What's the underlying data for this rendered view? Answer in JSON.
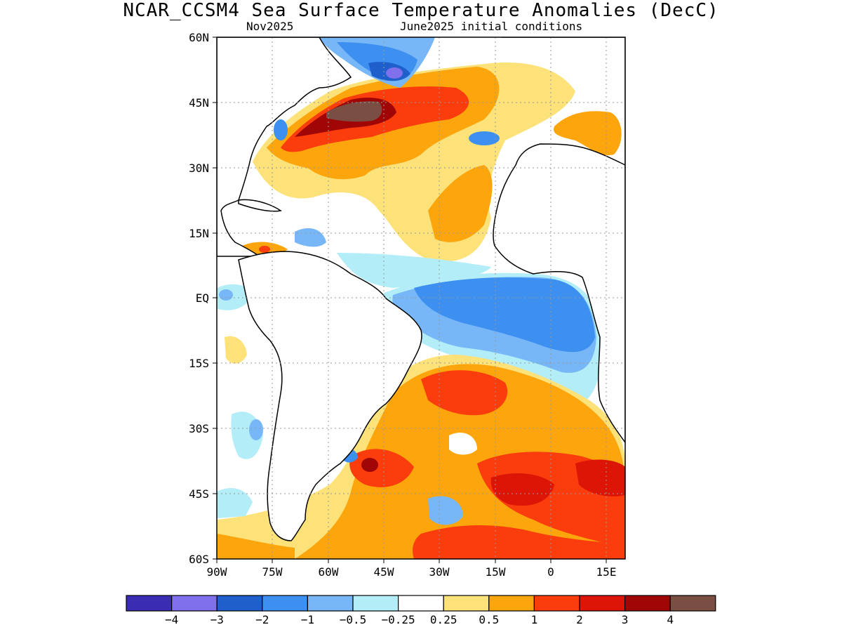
{
  "title": "NCAR_CCSM4 Sea Surface Temperature Anomalies (DecC)",
  "valid_month": "Nov2025",
  "init_label": "June2025 initial conditions",
  "map": {
    "projection": "lat-lon",
    "lon_range": [
      -90,
      20
    ],
    "lat_range": [
      -60,
      60
    ],
    "y_ticks": [
      "60N",
      "45N",
      "30N",
      "15N",
      "EQ",
      "15S",
      "30S",
      "45S",
      "60S"
    ],
    "x_ticks": [
      "90W",
      "75W",
      "60W",
      "45W",
      "30W",
      "15W",
      "0",
      "15E"
    ],
    "grid": "dotted"
  },
  "colorbar": {
    "colors": [
      "#3a2db4",
      "#8070eb",
      "#1f5fcc",
      "#3d8ff0",
      "#78b7f7",
      "#b3eef8",
      "#ffffff",
      "#fde27a",
      "#fca50c",
      "#fb3c0c",
      "#dc1506",
      "#a10606",
      "#7a4e43"
    ],
    "labels": [
      "−4",
      "−3",
      "−2",
      "−1",
      "−0.5",
      "−0.25",
      "0.25",
      "0.5",
      "1",
      "2",
      "3",
      "4"
    ]
  }
}
